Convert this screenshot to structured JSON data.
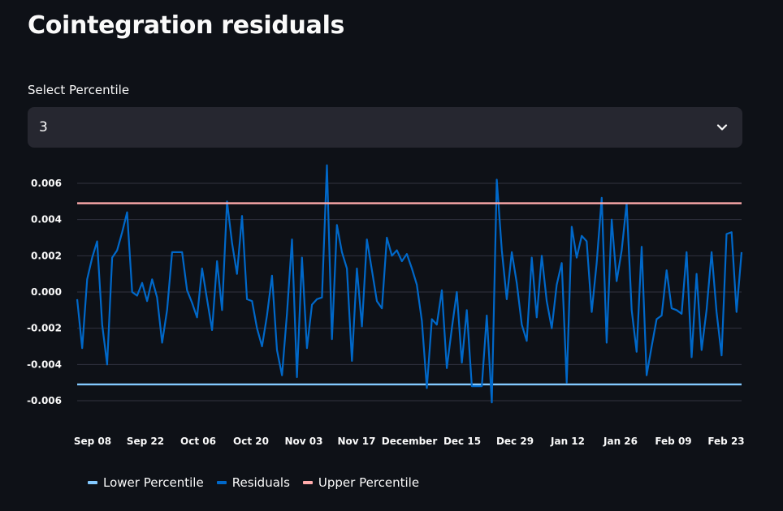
{
  "page": {
    "title": "Cointegration residuals"
  },
  "select": {
    "label": "Select Percentile",
    "value": "3",
    "icon": "chevron-down-icon"
  },
  "colors": {
    "background": "#0e1117",
    "gridline": "#31333f",
    "lower": "#83c9ff",
    "residuals": "#0068c9",
    "upper": "#ffabab"
  },
  "chart_data": {
    "type": "line",
    "x_tick_labels": [
      "Sep 08",
      "Sep 22",
      "Oct 06",
      "Oct 20",
      "Nov 03",
      "Nov 17",
      "December",
      "Dec 15",
      "Dec 29",
      "Jan 12",
      "Jan 26",
      "Feb 09",
      "Feb 23"
    ],
    "y_tick_labels": [
      "0.006",
      "0.004",
      "0.002",
      "0.000",
      "-0.002",
      "-0.004",
      "-0.006"
    ],
    "ylim": [
      -0.0065,
      0.0068
    ],
    "grid": true,
    "legend_position": "bottom",
    "series": [
      {
        "name": "Lower Percentile",
        "values": [
          -0.0051,
          -0.0051
        ]
      },
      {
        "name": "Residuals",
        "values": [
          -0.0004,
          -0.0031,
          0.0007,
          0.0019,
          0.0028,
          -0.0018,
          -0.004,
          0.0019,
          0.0023,
          0.0033,
          0.0044,
          0.0,
          -0.0002,
          0.0005,
          -0.0005,
          0.0007,
          -0.0003,
          -0.0028,
          -0.001,
          0.0022,
          0.0022,
          0.0022,
          0.0001,
          -0.0006,
          -0.0014,
          0.0013,
          -0.0004,
          -0.0021,
          0.0017,
          -0.001,
          0.005,
          0.0027,
          0.001,
          0.0042,
          -0.0004,
          -0.0005,
          -0.002,
          -0.003,
          -0.0013,
          0.0009,
          -0.0032,
          -0.0046,
          -0.0012,
          0.0029,
          -0.0047,
          0.0019,
          -0.0031,
          -0.0007,
          -0.0004,
          -0.0003,
          0.007,
          -0.0026,
          0.0037,
          0.0022,
          0.0013,
          -0.0038,
          0.0013,
          -0.0019,
          0.0029,
          0.0012,
          -0.0005,
          -0.0009,
          0.003,
          0.002,
          0.0023,
          0.0017,
          0.0021,
          0.0013,
          0.0004,
          -0.0016,
          -0.0053,
          -0.0015,
          -0.0018,
          0.0001,
          -0.0042,
          -0.002,
          0.0,
          -0.0039,
          -0.001,
          -0.0052,
          -0.0052,
          -0.0052,
          -0.0013,
          -0.0061,
          0.0062,
          0.0023,
          -0.0004,
          0.0022,
          0.0005,
          -0.0018,
          -0.0027,
          0.0019,
          -0.0014,
          0.002,
          -0.0005,
          -0.002,
          0.0004,
          0.0016,
          -0.005,
          0.0036,
          0.0019,
          0.0031,
          0.0028,
          -0.0011,
          0.0016,
          0.0052,
          -0.0028,
          0.004,
          0.0006,
          0.0023,
          0.0049,
          -0.001,
          -0.0033,
          0.0025,
          -0.0046,
          -0.003,
          -0.0015,
          -0.0013,
          0.0012,
          -0.0009,
          -0.001,
          -0.0012,
          0.0022,
          -0.0036,
          0.001,
          -0.0032,
          -0.001,
          0.0022,
          -0.0011,
          -0.0035,
          0.0032,
          0.0033,
          -0.0011,
          0.0022
        ]
      },
      {
        "name": "Upper Percentile",
        "values": [
          0.0049,
          0.0049
        ]
      }
    ]
  },
  "legend": [
    {
      "label": "Lower Percentile",
      "color": "#83c9ff"
    },
    {
      "label": "Residuals",
      "color": "#0068c9"
    },
    {
      "label": "Upper Percentile",
      "color": "#ffabab"
    }
  ]
}
